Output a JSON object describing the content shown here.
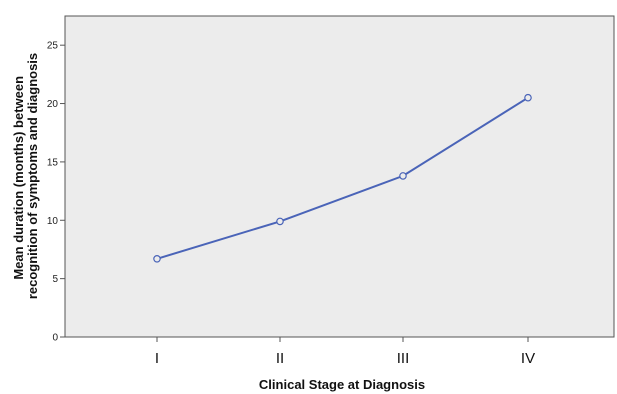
{
  "chart_data": {
    "type": "line",
    "title": "",
    "xlabel": "Clinical Stage at Diagnosis",
    "ylabel_lines": [
      "Mean duration (months) between",
      "recognition of symptoms and diagnosis"
    ],
    "categories": [
      "I",
      "II",
      "III",
      "IV"
    ],
    "series": [
      {
        "values": [
          6.7,
          9.9,
          13.8,
          20.5
        ],
        "color": "#4a64b8"
      }
    ],
    "ylim": [
      0,
      27.5
    ],
    "yticks": [
      0,
      5,
      10,
      15,
      20,
      25
    ],
    "grid": false,
    "legend": "none",
    "plot_background": "#ececec",
    "marker": "hollow-circle"
  }
}
